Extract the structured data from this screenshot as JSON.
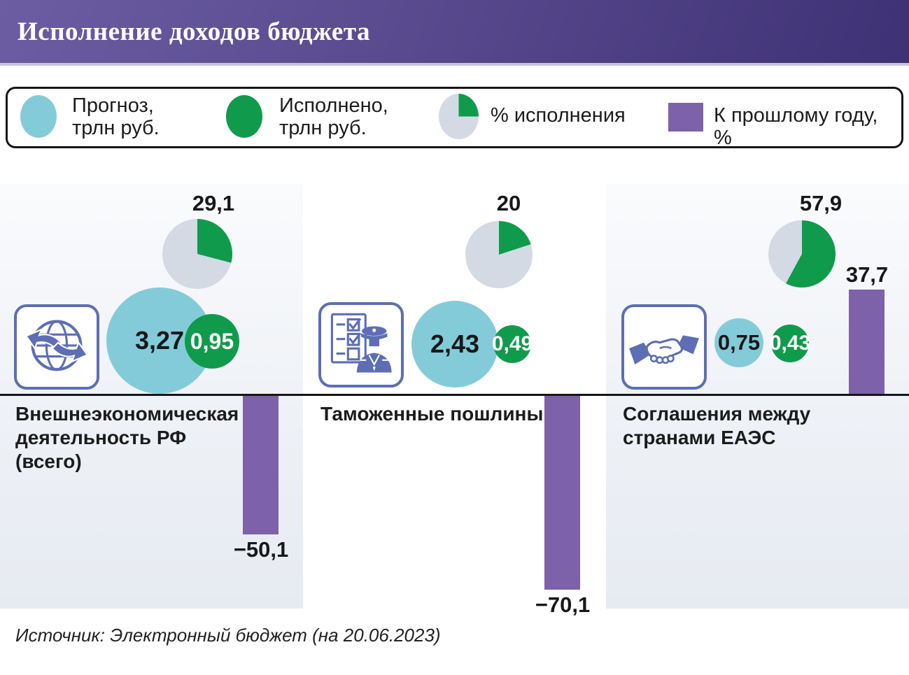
{
  "header": {
    "title": "Исполнение доходов бюджета"
  },
  "legend": {
    "items": [
      {
        "label": "Прогноз, трлн руб."
      },
      {
        "label": "Исполнено, трлн руб."
      },
      {
        "label": "% исполнения"
      },
      {
        "label": "К прошлому году, %"
      }
    ],
    "sample_pie_pct": 25
  },
  "panels": [
    {
      "icon": "globe-arrows-icon",
      "title": "Внешнеэкономическая деятельность РФ (всего)",
      "pie_label": "29,1",
      "pie_value": 29.1,
      "forecast": "3,27",
      "executed": "0,95",
      "yoy_label": "−50,1",
      "yoy_value": -50.1
    },
    {
      "icon": "customs-officer-icon",
      "title": "Таможенные пошлины",
      "pie_label": "20",
      "pie_value": 20,
      "forecast": "2,43",
      "executed": "0,49",
      "yoy_label": "−70,1",
      "yoy_value": -70.1
    },
    {
      "icon": "handshake-icon",
      "title": "Соглашения между странами ЕАЭС",
      "pie_label": "57,9",
      "pie_value": 57.9,
      "forecast": "0,75",
      "executed": "0,43",
      "yoy_label": "37,7",
      "yoy_value": 37.7
    }
  ],
  "source": "Источник: Электронный бюджет (на 20.06.2023)",
  "colors": {
    "cyan": "#84cbd9",
    "green": "#0f9b4b",
    "purple": "#7d61a9",
    "pie_gray": "#d3dae3",
    "icon_blue": "#5d6eb4",
    "header_dark": "#3e3174",
    "header_light": "#6c5da2"
  },
  "chart_data": {
    "type": "bar",
    "title": "Исполнение доходов бюджета",
    "categories": [
      "Внешнеэкономическая деятельность РФ (всего)",
      "Таможенные пошлины",
      "Соглашения между странами ЕАЭС"
    ],
    "series": [
      {
        "name": "Прогноз, трлн руб.",
        "values": [
          3.27,
          2.43,
          0.75
        ]
      },
      {
        "name": "Исполнено, трлн руб.",
        "values": [
          0.95,
          0.49,
          0.43
        ]
      },
      {
        "name": "% исполнения",
        "values": [
          29.1,
          20,
          57.9
        ]
      },
      {
        "name": "К прошлому году, %",
        "values": [
          -50.1,
          -70.1,
          37.7
        ]
      }
    ],
    "legend_position": "top",
    "grid": false,
    "source": "Источник: Электронный бюджет (на 20.06.2023)"
  }
}
